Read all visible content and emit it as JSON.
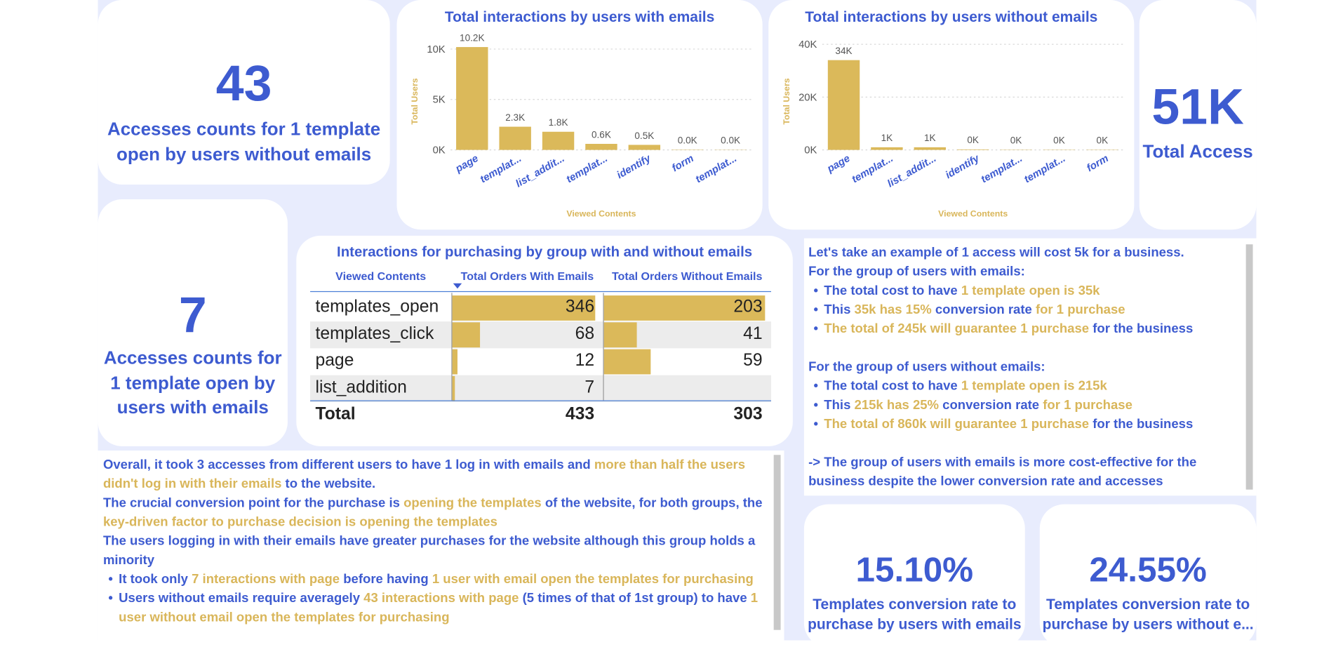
{
  "kpi_cards": [
    {
      "value": "43",
      "label": "Accesses counts for 1 template open by users without emails"
    },
    {
      "value": "7",
      "label": "Accesses counts for 1 template open by users with emails"
    },
    {
      "value": "51K",
      "label": "Total Access"
    },
    {
      "value": "15.10%",
      "label": "Templates conversion rate to purchase by users with emails"
    },
    {
      "value": "24.55%",
      "label": "Templates conversion rate to purchase by users without e..."
    }
  ],
  "chart_data": [
    {
      "type": "bar",
      "title": "Total interactions by users with emails",
      "x_label": "Viewed Contents",
      "y_label": "Total Users",
      "categories": [
        "page",
        "templat...",
        "list_addit...",
        "templat...",
        "identify",
        "form",
        "templat..."
      ],
      "values": [
        10200,
        2300,
        1800,
        600,
        500,
        30,
        20
      ],
      "value_labels": [
        "10.2K",
        "2.3K",
        "1.8K",
        "0.6K",
        "0.5K",
        "0.0K",
        "0.0K"
      ],
      "color": "#dbb95a",
      "ylim": [
        0,
        11000
      ],
      "yticks": [
        {
          "value": 0,
          "label": "0K"
        },
        {
          "value": 5000,
          "label": "5K"
        },
        {
          "value": 10000,
          "label": "10K"
        }
      ],
      "grid": true
    },
    {
      "type": "bar",
      "title": "Total interactions by users without emails",
      "x_label": "Viewed Contents",
      "y_label": "Total Users",
      "categories": [
        "page",
        "templat...",
        "list_addit...",
        "identify",
        "templat...",
        "templat...",
        "form"
      ],
      "values": [
        34000,
        1000,
        1000,
        200,
        100,
        100,
        100
      ],
      "value_labels": [
        "34K",
        "1K",
        "1K",
        "0K",
        "0K",
        "0K",
        "0K"
      ],
      "color": "#dbb95a",
      "ylim": [
        0,
        42000
      ],
      "yticks": [
        {
          "value": 0,
          "label": "0K"
        },
        {
          "value": 20000,
          "label": "20K"
        },
        {
          "value": 40000,
          "label": "40K"
        }
      ],
      "grid": true
    }
  ],
  "table": {
    "title": "Interactions for purchasing by group with and without emails",
    "columns": [
      "Viewed Contents",
      "Total Orders With Emails",
      "Total Orders Without Emails"
    ],
    "rows": [
      [
        "templates_open",
        346,
        203
      ],
      [
        "templates_click",
        68,
        41
      ],
      [
        "page",
        12,
        59
      ],
      [
        "list_addition",
        7,
        null
      ]
    ],
    "total": [
      "Total",
      433,
      303
    ],
    "bar_color": "#dbb95a"
  },
  "insights": {
    "groups": [
      [
        {
          "parts": [
            "Let's take an example of 1 access will cost 5k for a business."
          ]
        },
        {
          "parts": [
            "For the group of users with emails:"
          ]
        },
        {
          "bullet": [
            "The total cost to have ",
            {
              "highlight": "1 template open is 35k"
            }
          ]
        },
        {
          "bullet": [
            "This ",
            {
              "highlight": "35k has 15%"
            },
            " conversion rate ",
            {
              "highlight": "for 1 purchase"
            }
          ]
        },
        {
          "bullet": [
            {
              "highlight": "The total of 245k will guarantee 1 purchase"
            },
            " for the business"
          ]
        }
      ],
      [
        {
          "parts": [
            "For the group of users without emails:"
          ]
        },
        {
          "bullet": [
            "The total cost to have ",
            {
              "highlight": "1 template open is 215k"
            }
          ]
        },
        {
          "bullet": [
            "This ",
            {
              "highlight": "215k has 25%"
            },
            " conversion rate ",
            {
              "highlight": "for 1 purchase"
            }
          ]
        },
        {
          "bullet": [
            {
              "highlight": "The total of 860k will guarantee 1 purchase"
            },
            " for the business"
          ]
        }
      ],
      [
        {
          "parts": [
            "-> The group of users with emails is more cost-effective for the business despite the lower conversion rate and accesses"
          ]
        }
      ]
    ]
  },
  "summary": {
    "groups": [
      [
        {
          "parts": [
            "Overall, it took 3 accesses from different users to have 1 log in with emails and ",
            {
              "highlight": "more than half the users didn't log in with their emails"
            },
            " to the website."
          ]
        },
        {
          "parts": [
            "The crucial conversion point for the purchase is ",
            {
              "highlight": "opening the templates"
            },
            " of the website, for both groups, the ",
            {
              "highlight": "key-driven factor to purchase decision is opening the templates"
            }
          ]
        },
        {
          "parts": [
            "The users logging in with their emails have greater purchases for the website although this group holds a minority"
          ]
        },
        {
          "bullet": [
            "It took only ",
            {
              "highlight": "7 interactions with page"
            },
            " before having ",
            {
              "highlight": "1 user with email open the templates for purchasing"
            }
          ]
        },
        {
          "bullet": [
            "Users without emails require averagely ",
            {
              "highlight": "43 interactions with page"
            },
            " (5 times of that of 1st group) to have ",
            {
              "highlight": "1 user without email open the templates for purchasing"
            }
          ]
        }
      ]
    ]
  }
}
